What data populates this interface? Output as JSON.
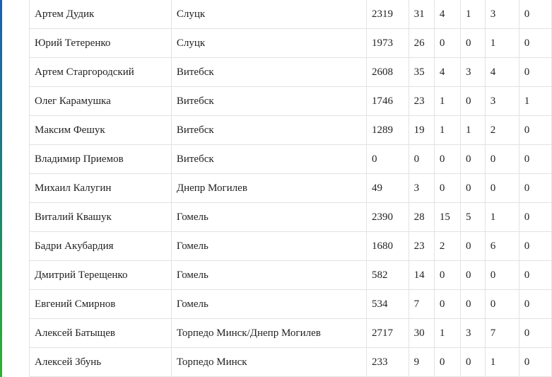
{
  "rows": [
    [
      "Артем Дудик",
      "Слуцк",
      "2319",
      "31",
      "4",
      "1",
      "3",
      "0"
    ],
    [
      "Юрий Тетеренко",
      "Слуцк",
      "1973",
      "26",
      "0",
      "0",
      "1",
      "0"
    ],
    [
      "Артем Старгородский",
      "Витебск",
      "2608",
      "35",
      "4",
      "3",
      "4",
      "0"
    ],
    [
      "Олег Карамушка",
      "Витебск",
      "1746",
      "23",
      "1",
      "0",
      "3",
      "1"
    ],
    [
      "Максим Фешук",
      "Витебск",
      "1289",
      "19",
      "1",
      "1",
      "2",
      "0"
    ],
    [
      "Владимир Приемов",
      "Витебск",
      "0",
      "0",
      "0",
      "0",
      "0",
      "0"
    ],
    [
      "Михаил Калугин",
      "Днепр Могилев",
      "49",
      "3",
      "0",
      "0",
      "0",
      "0"
    ],
    [
      "Виталий Квашук",
      "Гомель",
      "2390",
      "28",
      "15",
      "5",
      "1",
      "0"
    ],
    [
      "Бадри Акубардия",
      "Гомель",
      "1680",
      "23",
      "2",
      "0",
      "6",
      "0"
    ],
    [
      "Дмитрий Терещенко",
      "Гомель",
      "582",
      "14",
      "0",
      "0",
      "0",
      "0"
    ],
    [
      "Евгений Смирнов",
      "Гомель",
      "534",
      "7",
      "0",
      "0",
      "0",
      "0"
    ],
    [
      "Алексей Батыщев",
      "Торпедо Минск/Днепр Могилев",
      "2717",
      "30",
      "1",
      "3",
      "7",
      "0"
    ],
    [
      "Алексей Збунь",
      "Торпедо Минск",
      "233",
      "9",
      "0",
      "0",
      "1",
      "0"
    ]
  ]
}
